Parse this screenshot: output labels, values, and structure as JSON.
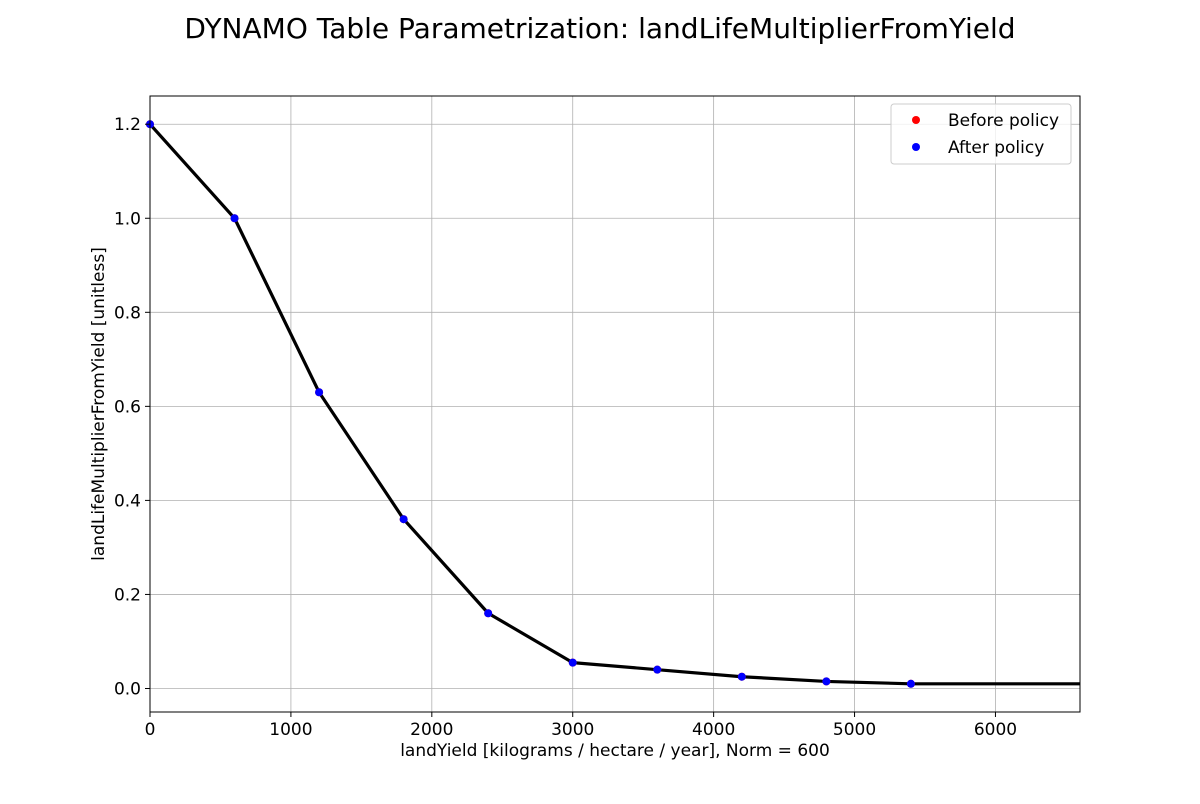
{
  "chart_data": {
    "type": "line",
    "title": "DYNAMO Table Parametrization: landLifeMultiplierFromYield",
    "xlabel": "landYield [kilograms / hectare / year], Norm = 600",
    "ylabel": "landLifeMultiplierFromYield [unitless]",
    "xlim": [
      0,
      6600
    ],
    "ylim": [
      -0.05,
      1.26
    ],
    "xticks": [
      0,
      1000,
      2000,
      3000,
      4000,
      5000,
      6000
    ],
    "yticks": [
      0.0,
      0.2,
      0.4,
      0.6,
      0.8,
      1.0,
      1.2
    ],
    "grid": true,
    "legend_position": "top-right",
    "line": {
      "color": "#000000",
      "x": [
        0,
        600,
        1200,
        1800,
        2400,
        3000,
        3600,
        4200,
        4800,
        5400,
        6600
      ],
      "y": [
        1.2,
        1.0,
        0.63,
        0.36,
        0.16,
        0.055,
        0.04,
        0.025,
        0.015,
        0.01,
        0.01
      ]
    },
    "series": [
      {
        "name": "Before policy",
        "color": "#ff0000",
        "x": [
          0,
          600,
          1200,
          1800,
          2400,
          3000,
          3600,
          4200,
          4800,
          5400
        ],
        "y": [
          1.2,
          1.0,
          0.63,
          0.36,
          0.16,
          0.055,
          0.04,
          0.025,
          0.015,
          0.01
        ]
      },
      {
        "name": "After policy",
        "color": "#0000ff",
        "x": [
          0,
          600,
          1200,
          1800,
          2400,
          3000,
          3600,
          4200,
          4800,
          5400
        ],
        "y": [
          1.2,
          1.0,
          0.63,
          0.36,
          0.16,
          0.055,
          0.04,
          0.025,
          0.015,
          0.01
        ]
      }
    ]
  }
}
